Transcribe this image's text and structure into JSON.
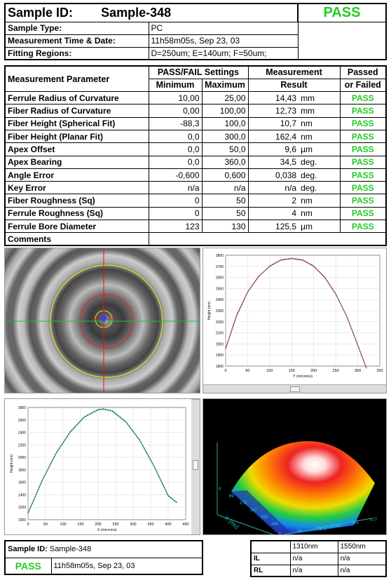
{
  "header": {
    "sample_id_label": "Sample ID:",
    "sample_id": "Sample-348",
    "status": "PASS",
    "rows": [
      {
        "label": "Sample Type:",
        "value": "PC"
      },
      {
        "label": "Measurement Time & Date:",
        "value": "11h58m05s, Sep 23, 03"
      },
      {
        "label": "Fitting Regions:",
        "value": "D=250um;   E=140um;   F=50um;"
      }
    ]
  },
  "table": {
    "col_param": "Measurement Parameter",
    "col_settings": "PASS/FAIL Settings",
    "col_min": "Minimum",
    "col_max": "Maximum",
    "col_result_1": "Measurement",
    "col_result_2": "Result",
    "col_passed_1": "Passed",
    "col_passed_2": "or Failed",
    "rows": [
      {
        "name": "Ferrule Radius of Curvature",
        "min": "10,00",
        "max": "25,00",
        "result": "14,43",
        "unit": "mm",
        "status": "PASS"
      },
      {
        "name": "Fiber Radius of Curvature",
        "min": "0,00",
        "max": "100,00",
        "result": "12,73",
        "unit": "mm",
        "status": "PASS"
      },
      {
        "name": "Fiber Height (Spherical Fit)",
        "min": "-88,3",
        "max": "100,0",
        "result": "10,7",
        "unit": "nm",
        "status": "PASS"
      },
      {
        "name": "Fiber Height (Planar Fit)",
        "min": "0,0",
        "max": "300,0",
        "result": "162,4",
        "unit": "nm",
        "status": "PASS"
      },
      {
        "name": "Apex Offset",
        "min": "0,0",
        "max": "50,0",
        "result": "9,6",
        "unit": "µm",
        "status": "PASS"
      },
      {
        "name": "Apex Bearing",
        "min": "0,0",
        "max": "360,0",
        "result": "34,5",
        "unit": "deg.",
        "status": "PASS"
      },
      {
        "name": "Angle Error",
        "min": "-0,600",
        "max": "0,600",
        "result": "0,038",
        "unit": "deg.",
        "status": "PASS"
      },
      {
        "name": "Key Error",
        "min": "n/a",
        "max": "n/a",
        "result": "n/a",
        "unit": "deg.",
        "status": "PASS"
      },
      {
        "name": "Fiber Roughness (Sq)",
        "min": "0",
        "max": "50",
        "result": "2",
        "unit": "nm",
        "status": "PASS"
      },
      {
        "name": "Ferrule Roughness (Sq)",
        "min": "0",
        "max": "50",
        "result": "4",
        "unit": "nm",
        "status": "PASS"
      },
      {
        "name": "Ferrule Bore Diameter",
        "min": "123",
        "max": "130",
        "result": "125,5",
        "unit": "µm",
        "status": "PASS"
      }
    ],
    "comments_label": "Comments"
  },
  "chart_data": [
    {
      "type": "line",
      "xlabel": "Y (microns)",
      "ylabel": "Height (nm)",
      "xlim": [
        0,
        350
      ],
      "ylim": [
        1800,
        2800
      ],
      "x_ticks": [
        "0",
        "50",
        "100",
        "150",
        "200",
        "250",
        "300",
        "350"
      ],
      "y_ticks": [
        "1800",
        "1900",
        "2000",
        "2100",
        "2200",
        "2300",
        "2400",
        "2500",
        "2600",
        "2700",
        "2800"
      ],
      "series": [
        {
          "color": "#cc2222",
          "x": [
            0,
            25,
            50,
            75,
            100,
            125,
            150,
            175,
            200,
            225,
            250,
            275,
            300,
            320
          ],
          "y": [
            1960,
            2260,
            2470,
            2610,
            2700,
            2755,
            2770,
            2755,
            2700,
            2600,
            2450,
            2250,
            1990,
            1780
          ]
        },
        {
          "color": "#3355cc",
          "x": [
            0,
            25,
            50,
            75,
            100,
            125,
            150,
            175,
            200,
            225,
            250,
            275,
            300,
            320
          ],
          "y": [
            1955,
            2250,
            2465,
            2605,
            2705,
            2760,
            2775,
            2760,
            2705,
            2605,
            2455,
            2245,
            1985,
            1775
          ]
        }
      ]
    },
    {
      "type": "line",
      "xlabel": "X (microns)",
      "ylabel": "Height (nm)",
      "xlim": [
        0,
        450
      ],
      "ylim": [
        1000,
        2800
      ],
      "x_ticks": [
        "0",
        "50",
        "100",
        "150",
        "200",
        "250",
        "300",
        "350",
        "400",
        "450"
      ],
      "y_ticks": [
        "1000",
        "1200",
        "1400",
        "1600",
        "1800",
        "2000",
        "2200",
        "2400",
        "2600",
        "2800"
      ],
      "series": [
        {
          "color": "#22aa55",
          "x": [
            0,
            40,
            80,
            120,
            160,
            200,
            215,
            240,
            280,
            320,
            360,
            400,
            425
          ],
          "y": [
            1100,
            1620,
            2060,
            2400,
            2640,
            2760,
            2770,
            2740,
            2560,
            2260,
            1850,
            1380,
            1270
          ]
        },
        {
          "color": "#223366",
          "x": [
            0,
            40,
            80,
            120,
            160,
            200,
            215,
            240,
            280,
            320,
            360,
            400,
            425
          ],
          "y": [
            1110,
            1630,
            2070,
            2410,
            2650,
            2770,
            2780,
            2750,
            2570,
            2270,
            1860,
            1390,
            1280
          ]
        }
      ]
    }
  ],
  "axis3d": {
    "x": "X (mu)",
    "y": "Y (mu)",
    "xticks": [
      "0",
      "89",
      "178",
      "267",
      "356",
      "445"
    ],
    "yticks": [
      "0",
      "96",
      "192",
      "286",
      "381",
      "477"
    ]
  },
  "footer": {
    "sample_label": "Sample ID:",
    "sample_id": "Sample-348",
    "status": "PASS",
    "datetime": "11h58m05s, Sep 23, 03",
    "wl1": "1310nm",
    "wl2": "1550nm",
    "il_label": "IL",
    "rl_label": "RL",
    "il1": "n/a",
    "il2": "n/a",
    "rl1": "n/a",
    "rl2": "n/a"
  },
  "colors": {
    "pass": "#22cc22",
    "crosshair": "#ee1111"
  }
}
